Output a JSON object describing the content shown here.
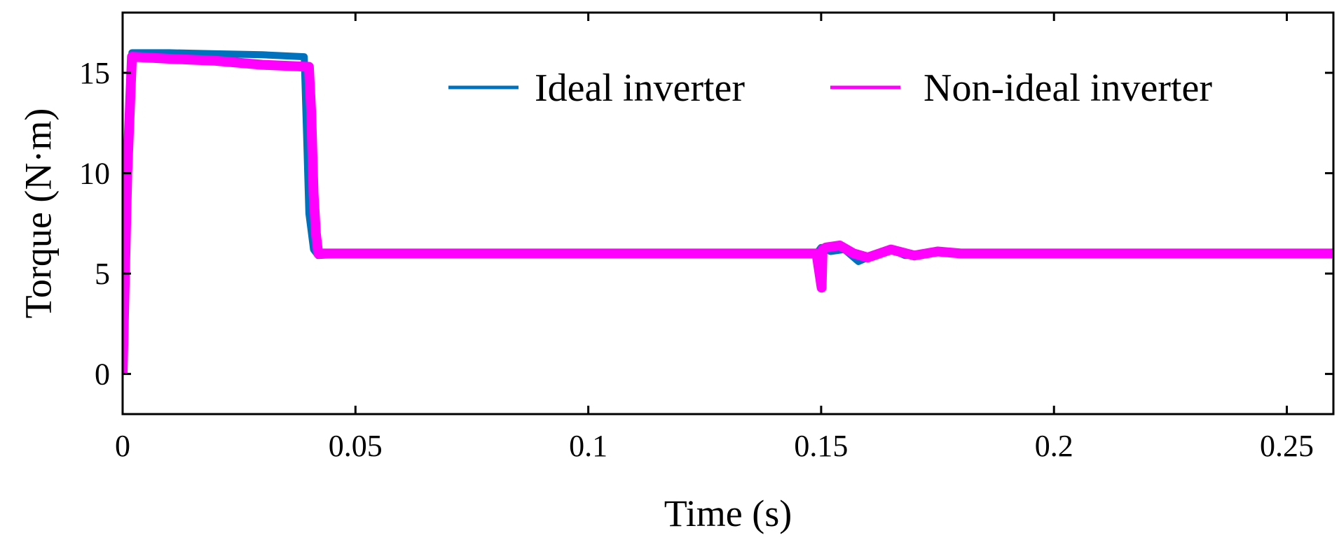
{
  "chart_data": {
    "type": "line",
    "title": "",
    "xlabel": "Time (s)",
    "ylabel": "Torque (N·m)",
    "xlim": [
      0,
      0.26
    ],
    "ylim": [
      -2,
      18
    ],
    "x_ticks": [
      0,
      0.05,
      0.1,
      0.15,
      0.2,
      0.25
    ],
    "x_tick_labels": [
      "0",
      "0.05",
      "0.1",
      "0.15",
      "0.2",
      "0.25"
    ],
    "y_ticks": [
      0,
      5,
      10,
      15
    ],
    "y_tick_labels": [
      "0",
      "5",
      "10",
      "15"
    ],
    "grid": false,
    "legend_position": "top-right",
    "series": [
      {
        "name": "Ideal inverter",
        "color": "#0072BD",
        "x": [
          0,
          0.001,
          0.002,
          0.01,
          0.02,
          0.03,
          0.039,
          0.0395,
          0.04,
          0.041,
          0.042,
          0.05,
          0.1,
          0.149,
          0.15,
          0.152,
          0.155,
          0.158,
          0.16,
          0.163,
          0.165,
          0.168,
          0.17,
          0.175,
          0.18,
          0.19,
          0.2,
          0.22,
          0.24,
          0.26
        ],
        "y": [
          0,
          10,
          16,
          16,
          15.95,
          15.9,
          15.8,
          12,
          8,
          6.2,
          5.9,
          6,
          6,
          6,
          6.3,
          6.1,
          6.2,
          5.6,
          5.8,
          6.1,
          6.2,
          5.9,
          5.9,
          6.1,
          6,
          6,
          6,
          6,
          6,
          6
        ]
      },
      {
        "name": "Non-ideal inverter",
        "color": "#FF00FF",
        "x": [
          0,
          0.001,
          0.002,
          0.01,
          0.02,
          0.03,
          0.04,
          0.0405,
          0.041,
          0.0415,
          0.042,
          0.05,
          0.1,
          0.149,
          0.1501,
          0.1503,
          0.151,
          0.154,
          0.157,
          0.16,
          0.165,
          0.17,
          0.175,
          0.18,
          0.19,
          0.2,
          0.22,
          0.24,
          0.26
        ],
        "y": [
          0,
          10,
          15.8,
          15.7,
          15.6,
          15.4,
          15.3,
          13,
          9,
          7,
          6,
          6,
          6,
          6,
          4.3,
          6.2,
          6.3,
          6.4,
          6,
          5.8,
          6.2,
          5.9,
          6.1,
          6,
          6,
          6,
          6,
          6,
          6
        ]
      }
    ]
  }
}
